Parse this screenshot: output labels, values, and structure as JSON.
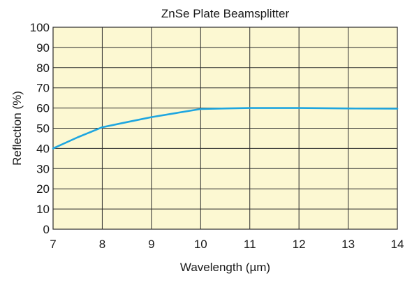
{
  "chart_data": {
    "type": "line",
    "title": "ZnSe Plate Beamsplitter",
    "xlabel": "Wavelength (µm)",
    "ylabel": "Reflection (%)",
    "xlim": [
      7,
      14
    ],
    "ylim": [
      0,
      100
    ],
    "x_ticks": [
      7,
      8,
      9,
      10,
      11,
      12,
      13,
      14
    ],
    "y_ticks": [
      0,
      10,
      20,
      30,
      40,
      50,
      60,
      70,
      80,
      90,
      100
    ],
    "grid": true,
    "legend": "none",
    "background_color": "#fcf8d2",
    "grid_color": "#2a2a2a",
    "line_color": "#1ea6e0",
    "series": [
      {
        "x": [
          7.0,
          7.5,
          8.0,
          8.5,
          9.0,
          9.5,
          10.0,
          10.5,
          11.0,
          12.0,
          13.0,
          14.0
        ],
        "y": [
          40.0,
          45.5,
          50.5,
          53.0,
          55.5,
          57.5,
          59.5,
          59.8,
          60.0,
          60.0,
          59.8,
          59.7
        ]
      }
    ]
  }
}
